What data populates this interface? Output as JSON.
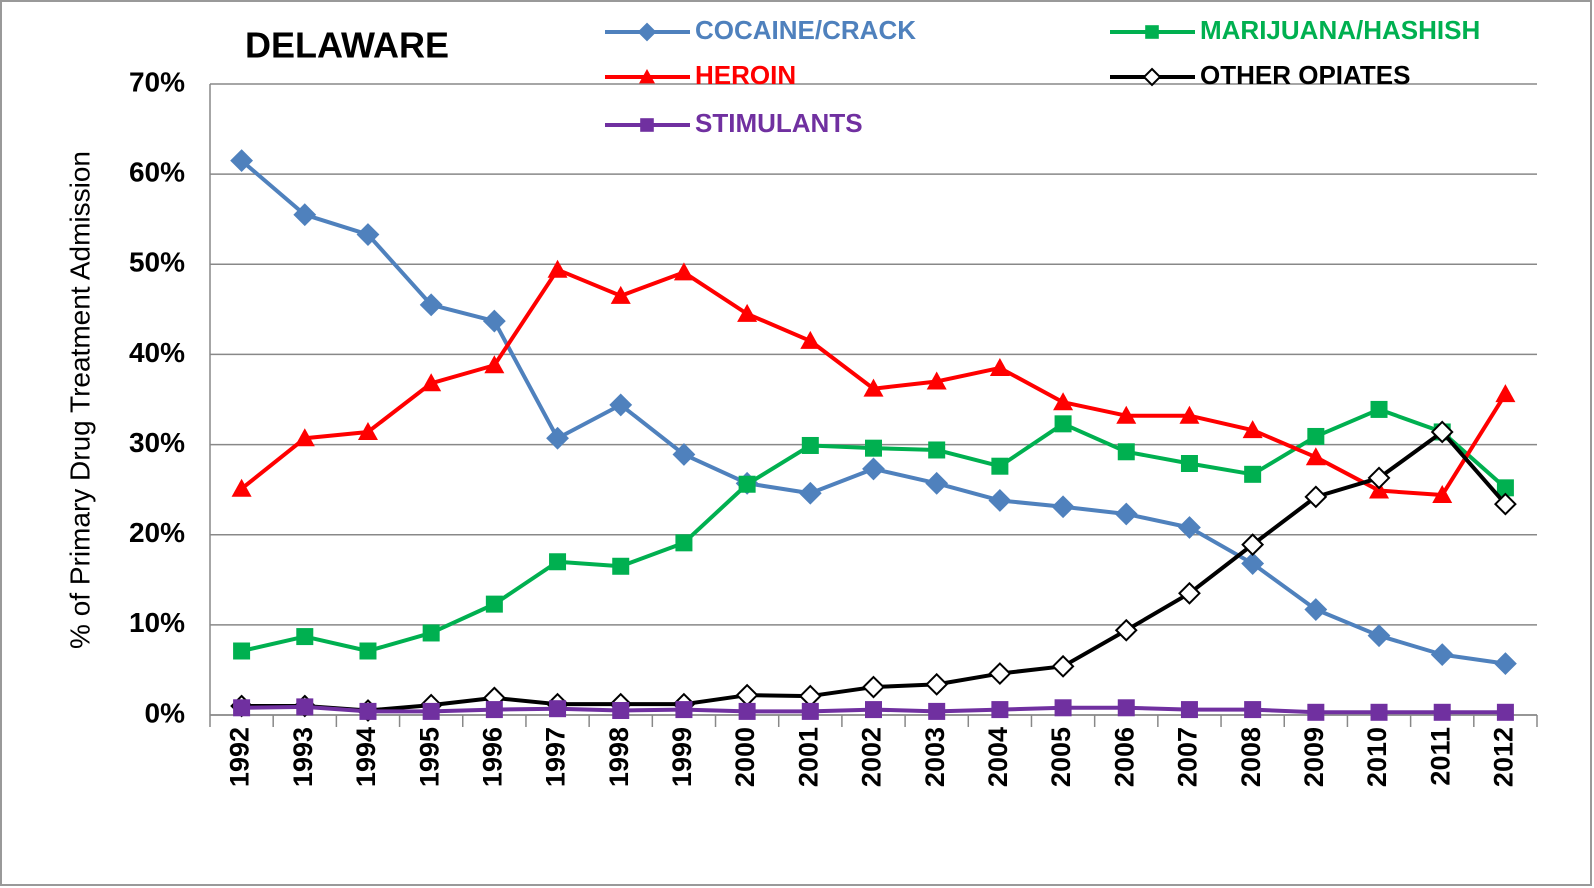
{
  "chart_data": {
    "type": "line",
    "title": "DELAWARE",
    "y_label": "% of Primary Drug Treatment Admission",
    "categories": [
      "1992",
      "1993",
      "1994",
      "1995",
      "1996",
      "1997",
      "1998",
      "1999",
      "2000",
      "2001",
      "2002",
      "2003",
      "2004",
      "2005",
      "2006",
      "2007",
      "2008",
      "2009",
      "2010",
      "2011",
      "2012"
    ],
    "series": [
      {
        "name": "COCAINE/CRACK",
        "color": "#4f81bd",
        "marker": "diamond",
        "values": [
          61.5,
          55.5,
          53.3,
          45.5,
          43.7,
          30.7,
          34.4,
          28.9,
          25.7,
          24.6,
          27.3,
          25.7,
          23.8,
          23.1,
          22.3,
          20.8,
          16.8,
          11.7,
          8.8,
          6.7,
          5.7
        ]
      },
      {
        "name": "MARIJUANA/HASHISH",
        "color": "#00b050",
        "marker": "square",
        "values": [
          7.1,
          8.7,
          7.1,
          9.1,
          12.3,
          17.0,
          16.5,
          19.1,
          25.6,
          29.9,
          29.6,
          29.4,
          27.6,
          32.3,
          29.2,
          27.9,
          26.7,
          30.9,
          33.9,
          31.4,
          25.2
        ]
      },
      {
        "name": "HEROIN",
        "color": "#ff0000",
        "marker": "triangle",
        "values": [
          25.1,
          30.7,
          31.4,
          36.8,
          38.8,
          49.4,
          46.5,
          49.1,
          44.5,
          41.5,
          36.2,
          37.0,
          38.5,
          34.7,
          33.2,
          33.2,
          31.6,
          28.6,
          24.9,
          24.4,
          35.6
        ]
      },
      {
        "name": "OTHER OPIATES",
        "color": "#000000",
        "marker": "open-diamond",
        "values": [
          1.0,
          1.0,
          0.5,
          1.1,
          1.9,
          1.2,
          1.2,
          1.2,
          2.2,
          2.1,
          3.1,
          3.4,
          4.6,
          5.4,
          9.4,
          13.5,
          18.9,
          24.2,
          26.3,
          31.4,
          23.4
        ]
      },
      {
        "name": "STIMULANTS",
        "color": "#7030a0",
        "marker": "square",
        "values": [
          0.8,
          0.9,
          0.4,
          0.4,
          0.6,
          0.7,
          0.5,
          0.6,
          0.4,
          0.4,
          0.6,
          0.4,
          0.6,
          0.8,
          0.8,
          0.6,
          0.6,
          0.3,
          0.3,
          0.3,
          0.3
        ]
      }
    ],
    "ylim": [
      0,
      70
    ],
    "yticks": [
      {
        "value": 0,
        "label": "0%"
      },
      {
        "value": 10,
        "label": "10%"
      },
      {
        "value": 20,
        "label": "20%"
      },
      {
        "value": 30,
        "label": "30%"
      },
      {
        "value": 40,
        "label": "40%"
      },
      {
        "value": 50,
        "label": "50%"
      },
      {
        "value": 60,
        "label": "60%"
      },
      {
        "value": 70,
        "label": "70%"
      }
    ],
    "grid": true
  }
}
